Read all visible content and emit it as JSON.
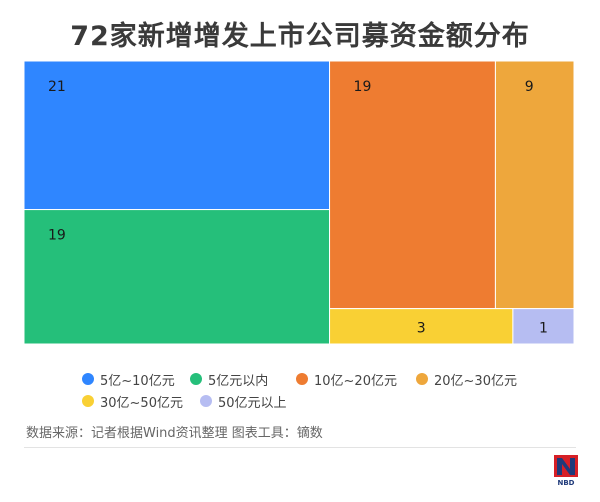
{
  "chart_data": {
    "type": "treemap",
    "title": "72家新增增发上市公司募资金额分布",
    "items": [
      {
        "label": "5亿~10亿元",
        "value": 21,
        "color": "#2f86ff"
      },
      {
        "label": "5亿元以内",
        "value": 19,
        "color": "#25bf7a"
      },
      {
        "label": "10亿~20亿元",
        "value": 19,
        "color": "#ee7c31"
      },
      {
        "label": "20亿~30亿元",
        "value": 9,
        "color": "#eea73c"
      },
      {
        "label": "30亿~50亿元",
        "value": 3,
        "color": "#f9d034"
      },
      {
        "label": "50亿元以上",
        "value": 1,
        "color": "#b6bdf2"
      }
    ],
    "legend_placement": "bottom"
  },
  "source_note": "数据来源：记者根据Wind资讯整理 图表工具：镝数",
  "logo_text": "NBD"
}
